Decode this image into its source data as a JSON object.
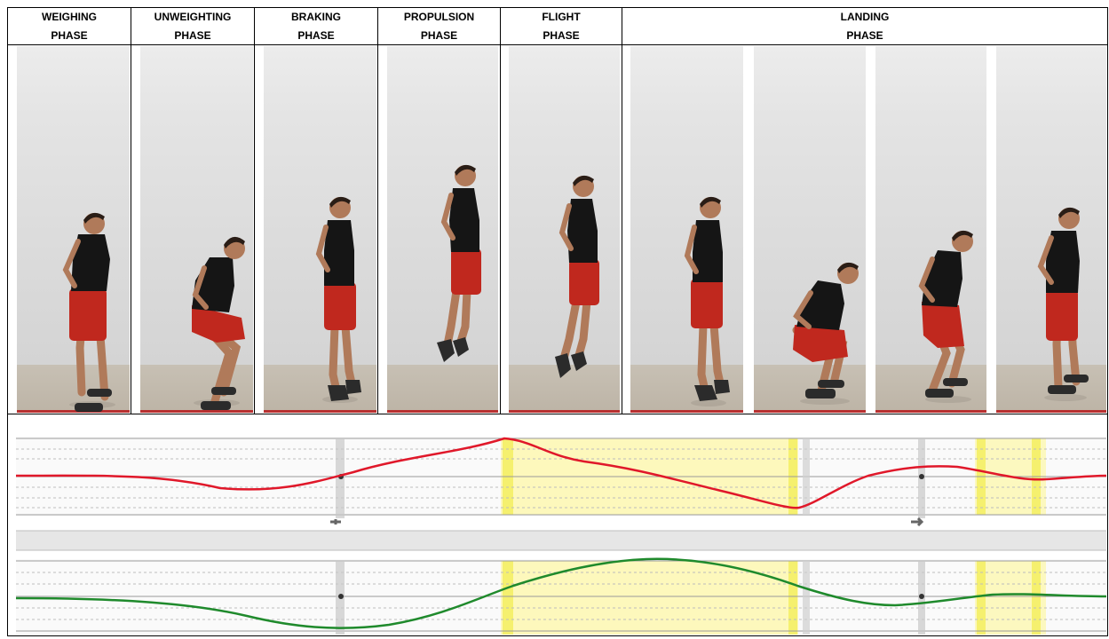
{
  "phases": {
    "weighing": {
      "line1": "WEIGHING",
      "line2": "PHASE"
    },
    "unweighting": {
      "line1": "UNWEIGHTING",
      "line2": "PHASE"
    },
    "braking": {
      "line1": "BRAKING",
      "line2": "PHASE"
    },
    "propulsion": {
      "line1": "PROPULSION",
      "line2": "PHASE"
    },
    "flight": {
      "line1": "FLIGHT",
      "line2": "PHASE"
    },
    "landing": {
      "line1": "LANDING",
      "line2": "PHASE"
    }
  },
  "colors": {
    "shirt": "#151515",
    "shorts": "#c0281e",
    "skin": "#b07a5a",
    "hair": "#2a1d16",
    "shoes": "#2b2b2b",
    "force_curve": "#e0182a",
    "velocity_curve": "#1f8a2c",
    "highlight": "#fdf7b0",
    "highlight_strong": "#f3ee5a"
  },
  "graph_icons": [
    "wrench-icon",
    "arrow-icon"
  ]
}
